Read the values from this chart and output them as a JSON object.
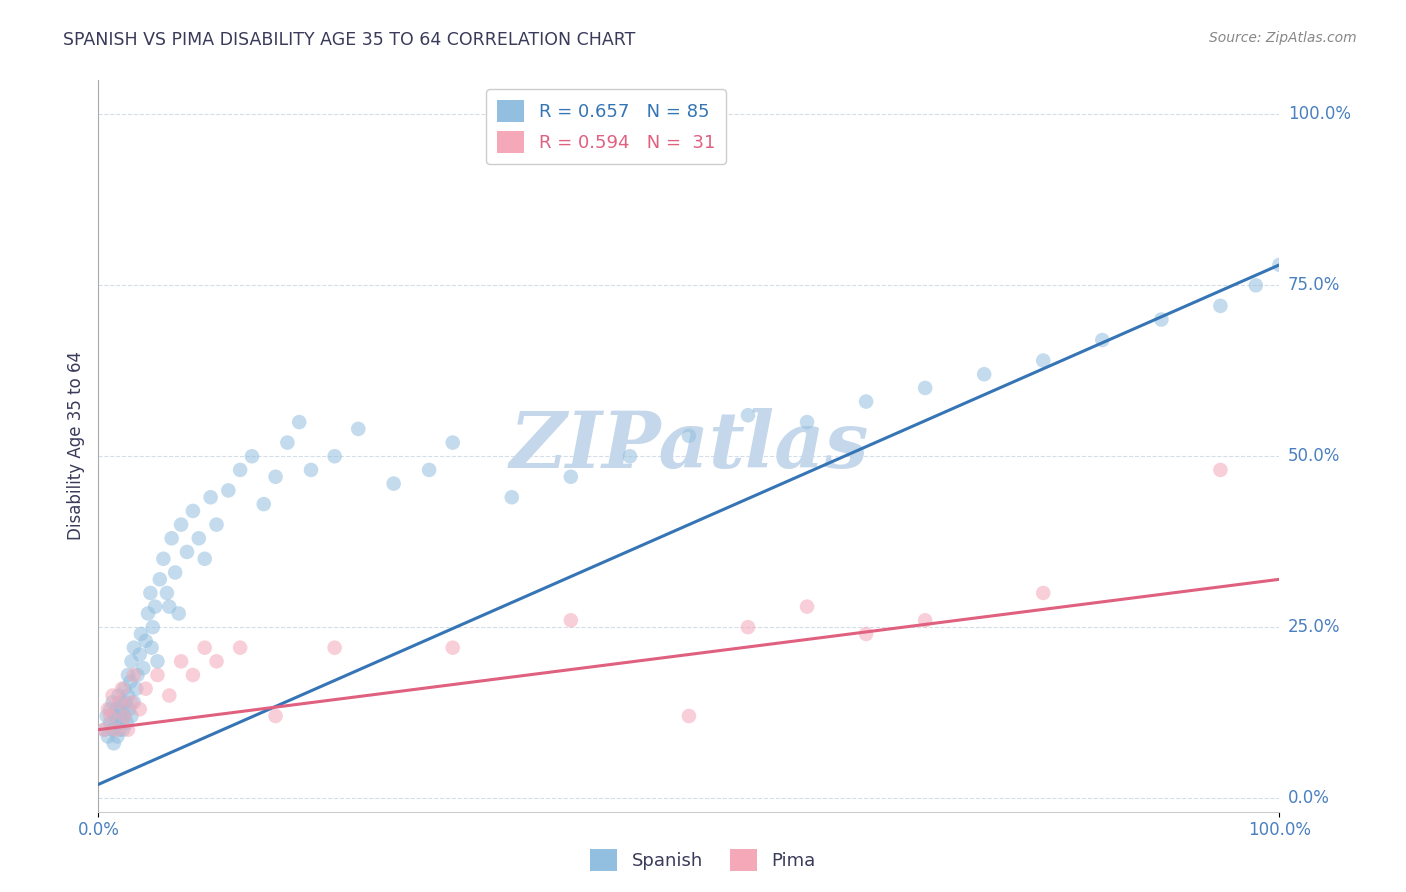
{
  "title": "SPANISH VS PIMA DISABILITY AGE 35 TO 64 CORRELATION CHART",
  "source_text": "Source: ZipAtlas.com",
  "ylabel": "Disability Age 35 to 64",
  "xlim": [
    0.0,
    1.0
  ],
  "ylim": [
    -0.02,
    1.05
  ],
  "xtick_positions": [
    0.0,
    1.0
  ],
  "xtick_labels": [
    "0.0%",
    "100.0%"
  ],
  "ytick_positions": [
    0.0,
    0.25,
    0.5,
    0.75,
    1.0
  ],
  "ytick_labels": [
    "0.0%",
    "25.0%",
    "50.0%",
    "75.0%",
    "100.0%"
  ],
  "blue_color": "#92bfdf",
  "pink_color": "#f4a8b8",
  "blue_line_color": "#3575b5",
  "pink_line_color": "#e06080",
  "watermark_text": "ZIPatlas",
  "watermark_color": "#c5d8eb",
  "title_color": "#3a3a5a",
  "axis_label_color": "#3a3a5a",
  "tick_label_color": "#4a80bf",
  "grid_color": "#d5dde8",
  "background_color": "#ffffff",
  "blue_scatter_x": [
    0.005,
    0.007,
    0.008,
    0.01,
    0.01,
    0.012,
    0.012,
    0.013,
    0.014,
    0.015,
    0.015,
    0.016,
    0.017,
    0.018,
    0.018,
    0.019,
    0.02,
    0.02,
    0.021,
    0.022,
    0.022,
    0.023,
    0.024,
    0.025,
    0.025,
    0.026,
    0.027,
    0.028,
    0.028,
    0.03,
    0.03,
    0.032,
    0.033,
    0.035,
    0.036,
    0.038,
    0.04,
    0.042,
    0.044,
    0.045,
    0.046,
    0.048,
    0.05,
    0.052,
    0.055,
    0.058,
    0.06,
    0.062,
    0.065,
    0.068,
    0.07,
    0.075,
    0.08,
    0.085,
    0.09,
    0.095,
    0.1,
    0.11,
    0.12,
    0.13,
    0.14,
    0.15,
    0.16,
    0.17,
    0.18,
    0.2,
    0.22,
    0.25,
    0.28,
    0.3,
    0.35,
    0.4,
    0.45,
    0.5,
    0.55,
    0.6,
    0.65,
    0.7,
    0.75,
    0.8,
    0.85,
    0.9,
    0.95,
    0.98,
    1.0
  ],
  "blue_scatter_y": [
    0.1,
    0.12,
    0.09,
    0.13,
    0.11,
    0.1,
    0.14,
    0.08,
    0.12,
    0.11,
    0.13,
    0.09,
    0.15,
    0.1,
    0.12,
    0.14,
    0.11,
    0.13,
    0.1,
    0.16,
    0.12,
    0.14,
    0.11,
    0.15,
    0.18,
    0.13,
    0.17,
    0.12,
    0.2,
    0.14,
    0.22,
    0.16,
    0.18,
    0.21,
    0.24,
    0.19,
    0.23,
    0.27,
    0.3,
    0.22,
    0.25,
    0.28,
    0.2,
    0.32,
    0.35,
    0.3,
    0.28,
    0.38,
    0.33,
    0.27,
    0.4,
    0.36,
    0.42,
    0.38,
    0.35,
    0.44,
    0.4,
    0.45,
    0.48,
    0.5,
    0.43,
    0.47,
    0.52,
    0.55,
    0.48,
    0.5,
    0.54,
    0.46,
    0.48,
    0.52,
    0.44,
    0.47,
    0.5,
    0.53,
    0.56,
    0.55,
    0.58,
    0.6,
    0.62,
    0.64,
    0.67,
    0.7,
    0.72,
    0.75,
    0.78
  ],
  "pink_scatter_x": [
    0.005,
    0.008,
    0.01,
    0.012,
    0.015,
    0.018,
    0.02,
    0.022,
    0.025,
    0.028,
    0.03,
    0.035,
    0.04,
    0.05,
    0.06,
    0.07,
    0.08,
    0.09,
    0.1,
    0.12,
    0.15,
    0.2,
    0.3,
    0.4,
    0.5,
    0.55,
    0.6,
    0.65,
    0.7,
    0.8,
    0.95
  ],
  "pink_scatter_y": [
    0.1,
    0.13,
    0.12,
    0.15,
    0.1,
    0.14,
    0.16,
    0.12,
    0.1,
    0.14,
    0.18,
    0.13,
    0.16,
    0.18,
    0.15,
    0.2,
    0.18,
    0.22,
    0.2,
    0.22,
    0.12,
    0.22,
    0.22,
    0.26,
    0.12,
    0.25,
    0.28,
    0.24,
    0.26,
    0.3,
    0.48
  ],
  "blue_line_x": [
    0.0,
    1.0
  ],
  "blue_line_y": [
    0.02,
    0.78
  ],
  "pink_line_x": [
    0.0,
    1.0
  ],
  "pink_line_y": [
    0.1,
    0.32
  ],
  "legend_blue_label": "R = 0.657   N = 85",
  "legend_pink_label": "R = 0.594   N =  31",
  "legend_bottom_blue": "Spanish",
  "legend_bottom_pink": "Pima",
  "marker_size": 110,
  "marker_alpha": 0.55,
  "line_width": 2.2
}
